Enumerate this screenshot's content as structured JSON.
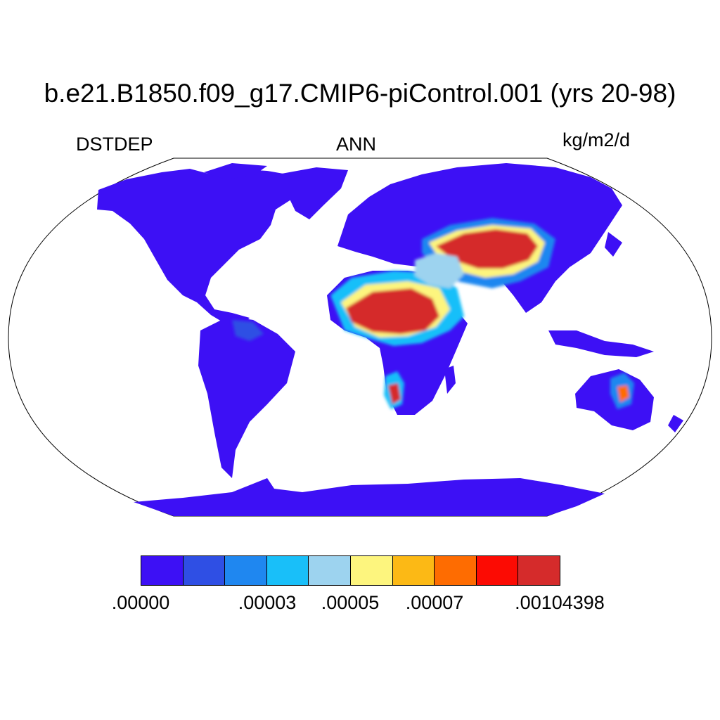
{
  "title": "b.e21.B1850.f09_g17.CMIP6-piControl.001 (yrs 20-98)",
  "variable": "DSTDEP",
  "period": "ANN",
  "units": "kg/m2/d",
  "projection": "Robinson",
  "colors": {
    "ocean": "#ffffff",
    "outline": "#000000"
  },
  "colorbar": {
    "colors": [
      "#3d10f5",
      "#2f4fe4",
      "#1f87f0",
      "#19bff9",
      "#9dd3ef",
      "#fdf57e",
      "#fcb915",
      "#fe6c01",
      "#fc0b03",
      "#d52b2b"
    ],
    "labels": [
      ".00000",
      ".00003",
      ".00005",
      ".00007",
      ".00104398"
    ]
  }
}
